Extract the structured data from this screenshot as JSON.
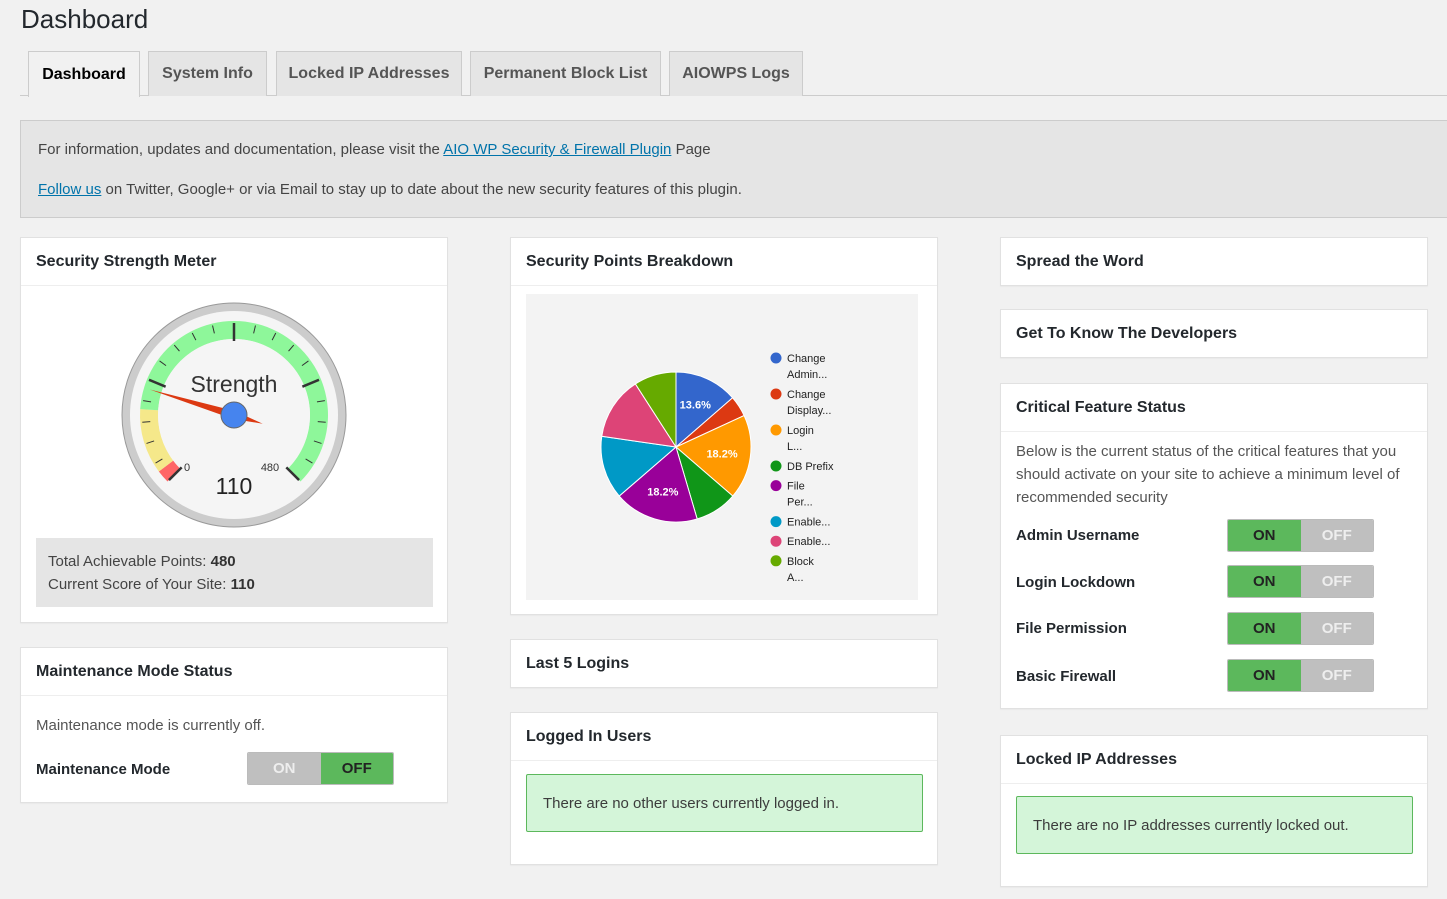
{
  "page": {
    "title": "Dashboard"
  },
  "tabs": [
    {
      "label": "Dashboard",
      "active": true
    },
    {
      "label": "System Info"
    },
    {
      "label": "Locked IP Addresses"
    },
    {
      "label": "Permanent Block List"
    },
    {
      "label": "AIOWPS Logs"
    }
  ],
  "info": {
    "line1_prefix": "For information, updates and documentation, please visit the",
    "line1_link": "AIO WP Security & Firewall Plugin",
    "line1_suffix": "Page",
    "line2_link": "Follow us",
    "line2_suffix": "on Twitter, Google+ or via Email to stay up to date about the new security features of this plugin."
  },
  "strength_meter": {
    "title": "Security Strength Meter",
    "gauge_label": "Strength",
    "gauge_value": "110",
    "gauge_min": "0",
    "gauge_max": "480",
    "total_label": "Total Achievable Points:",
    "total_value": "480",
    "current_label": "Current Score of Your Site:",
    "current_value": "110"
  },
  "points_breakdown": {
    "title": "Security Points Breakdown"
  },
  "chart_data": {
    "type": "pie",
    "legend_position": "right",
    "slices": [
      {
        "label": "Change Admin...",
        "value": 13.6,
        "color": "#3366cc",
        "show_label": "13.6%"
      },
      {
        "label": "Change Display...",
        "value": 4.5,
        "color": "#dc3912",
        "show_label": ""
      },
      {
        "label": "Login L...",
        "value": 18.2,
        "color": "#ff9900",
        "show_label": "18.2%"
      },
      {
        "label": "DB Prefix",
        "value": 9.1,
        "color": "#109618",
        "show_label": ""
      },
      {
        "label": "File Per...",
        "value": 18.2,
        "color": "#990099",
        "show_label": "18.2%"
      },
      {
        "label": "Enable...",
        "value": 13.6,
        "color": "#0099c6",
        "show_label": ""
      },
      {
        "label": "Enable...",
        "value": 13.6,
        "color": "#dd4477",
        "show_label": ""
      },
      {
        "label": "Block A...",
        "value": 9.1,
        "color": "#66aa00",
        "show_label": ""
      }
    ]
  },
  "maintenance": {
    "title": "Maintenance Mode Status",
    "status_text": "Maintenance mode is currently off.",
    "label": "Maintenance Mode",
    "on": "ON",
    "off": "OFF"
  },
  "last_logins": {
    "title": "Last 5 Logins"
  },
  "logged_in": {
    "title": "Logged In Users",
    "message": "There are no other users currently logged in."
  },
  "spread": {
    "title": "Spread the Word"
  },
  "developers": {
    "title": "Get To Know The Developers"
  },
  "critical": {
    "title": "Critical Feature Status",
    "description": "Below is the current status of the critical features that you should activate on your site to achieve a minimum level of recommended security",
    "features": [
      {
        "label": "Admin Username",
        "on": "ON",
        "off": "OFF"
      },
      {
        "label": "Login Lockdown",
        "on": "ON",
        "off": "OFF"
      },
      {
        "label": "File Permission",
        "on": "ON",
        "off": "OFF"
      },
      {
        "label": "Basic Firewall",
        "on": "ON",
        "off": "OFF"
      }
    ]
  },
  "locked_ips": {
    "title": "Locked IP Addresses",
    "message": "There are no IP addresses currently locked out."
  }
}
